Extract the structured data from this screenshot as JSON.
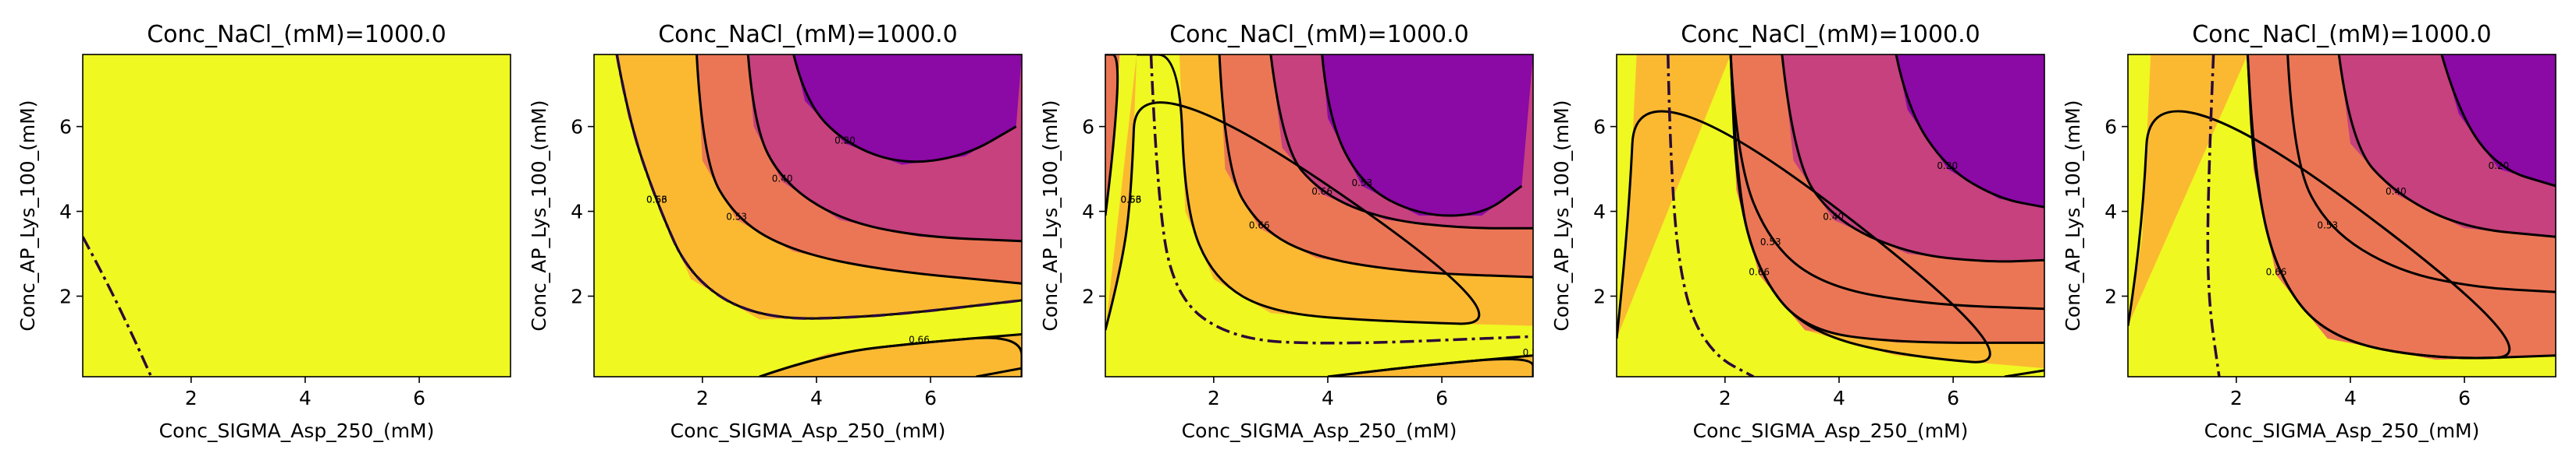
{
  "colors": {
    "level_yellow": "#eff821",
    "level_orange": "#fbb932",
    "level_salmon": "#eb7655",
    "level_magenta": "#c6417d",
    "level_purple": "#8b09a5",
    "contour_line": "#000000",
    "dashdot_line": "#2a0a3a"
  },
  "chart_data": [
    {
      "type": "contour",
      "title": "Conc_NaCl_(mM)=1000.0",
      "xlabel": "Conc_SIGMA_Asp_250_(mM)",
      "ylabel": "Conc_AP_Lys_100_(mM)",
      "xlim": [
        0.1,
        7.6
      ],
      "ylim": [
        0.1,
        7.7
      ],
      "xticks": [
        2,
        4,
        6
      ],
      "yticks": [
        2,
        4,
        6
      ],
      "contour_labels": [],
      "dashdot_line": [
        [
          0.1,
          3.4
        ],
        [
          0.5,
          2.4
        ],
        [
          1.0,
          1.0
        ],
        [
          1.3,
          0.1
        ]
      ],
      "bands": []
    },
    {
      "type": "contour",
      "title": "Conc_NaCl_(mM)=1000.0",
      "xlabel": "Conc_SIGMA_Asp_250_(mM)",
      "ylabel": "Conc_AP_Lys_100_(mM)",
      "xlim": [
        0.1,
        7.6
      ],
      "ylim": [
        0.1,
        7.7
      ],
      "xticks": [
        2,
        4,
        6
      ],
      "yticks": [
        2,
        4,
        6
      ],
      "contour_labels": [
        "0.66",
        "0.53",
        "0.40",
        "0.20",
        "0.66",
        "0.53"
      ],
      "dashdot_line": [
        [
          0.5,
          7.7
        ],
        [
          0.7,
          6.2
        ],
        [
          1.2,
          4.2
        ],
        [
          1.8,
          2.4
        ],
        [
          3.0,
          1.45
        ],
        [
          5.0,
          1.5
        ],
        [
          7.6,
          1.9
        ]
      ],
      "bands": [
        {
          "color": "level_orange",
          "boundary": [
            [
              0.5,
              7.7
            ],
            [
              0.7,
              6.2
            ],
            [
              1.2,
              4.2
            ],
            [
              1.8,
              2.4
            ],
            [
              3.0,
              1.45
            ],
            [
              5.0,
              1.5
            ],
            [
              7.6,
              1.9
            ],
            [
              7.6,
              7.7
            ]
          ]
        },
        {
          "color": "level_salmon",
          "boundary": [
            [
              1.9,
              7.7
            ],
            [
              2.0,
              5.2
            ],
            [
              2.6,
              3.8
            ],
            [
              3.6,
              3.05
            ],
            [
              5.2,
              2.6
            ],
            [
              7.6,
              2.3
            ],
            [
              7.6,
              7.7
            ]
          ]
        },
        {
          "color": "level_magenta",
          "boundary": [
            [
              2.8,
              7.7
            ],
            [
              2.9,
              6.0
            ],
            [
              3.4,
              4.7
            ],
            [
              4.4,
              3.8
            ],
            [
              5.8,
              3.4
            ],
            [
              7.6,
              3.3
            ],
            [
              7.6,
              7.7
            ]
          ]
        },
        {
          "color": "level_purple",
          "boundary": [
            [
              3.6,
              7.7
            ],
            [
              3.8,
              6.6
            ],
            [
              4.5,
              5.6
            ],
            [
              5.5,
              5.1
            ],
            [
              6.6,
              5.3
            ],
            [
              7.5,
              6.0
            ],
            [
              7.6,
              7.7
            ]
          ]
        },
        {
          "color": "level_orange",
          "boundary": [
            [
              3.0,
              0.1
            ],
            [
              4.2,
              0.65
            ],
            [
              5.8,
              0.9
            ],
            [
              7.6,
              1.1
            ],
            [
              7.6,
              0.1
            ]
          ]
        }
      ],
      "extra_lines": [
        [
          [
            3.0,
            0.1
          ],
          [
            4.2,
            0.65
          ],
          [
            5.8,
            0.9
          ],
          [
            7.6,
            1.1
          ]
        ],
        [
          [
            6.8,
            0.1
          ],
          [
            7.6,
            0.3
          ]
        ]
      ]
    },
    {
      "type": "contour",
      "title": "Conc_NaCl_(mM)=1000.0",
      "xlabel": "Conc_SIGMA_Asp_250_(mM)",
      "ylabel": "Conc_AP_Lys_100_(mM)",
      "xlim": [
        0.1,
        7.6
      ],
      "ylim": [
        0.1,
        7.7
      ],
      "xticks": [
        2,
        4,
        6
      ],
      "yticks": [
        2,
        4,
        6
      ],
      "contour_labels": [
        "0.53",
        "0.66",
        "0.66",
        "0.53",
        "0.40",
        "0.20",
        "0.66"
      ],
      "dashdot_line": [
        [
          0.9,
          7.7
        ],
        [
          1.0,
          4.5
        ],
        [
          1.3,
          2.0
        ],
        [
          2.3,
          1.0
        ],
        [
          4.0,
          0.85
        ],
        [
          7.6,
          1.05
        ]
      ],
      "bands": [
        {
          "color": "level_orange",
          "boundary": [
            [
              0.1,
              1.2
            ],
            [
              0.35,
              2.5
            ],
            [
              0.55,
              4.2
            ],
            [
              0.65,
              7.7
            ],
            [
              7.6,
              7.7
            ],
            [
              7.6,
              1.3
            ],
            [
              5.0,
              1.4
            ],
            [
              3.0,
              1.6
            ],
            [
              2.0,
              2.4
            ],
            [
              1.5,
              4.0
            ],
            [
              1.4,
              7.7
            ],
            [
              0.65,
              7.7
            ]
          ]
        },
        {
          "color": "level_salmon",
          "boundary": [
            [
              2.1,
              7.7
            ],
            [
              2.2,
              5.0
            ],
            [
              2.8,
              3.6
            ],
            [
              3.8,
              2.9
            ],
            [
              5.5,
              2.55
            ],
            [
              7.6,
              2.45
            ],
            [
              7.6,
              7.7
            ]
          ]
        },
        {
          "color": "level_magenta",
          "boundary": [
            [
              3.0,
              7.7
            ],
            [
              3.2,
              5.5
            ],
            [
              3.9,
              4.4
            ],
            [
              5.0,
              3.8
            ],
            [
              6.4,
              3.6
            ],
            [
              7.6,
              3.6
            ],
            [
              7.6,
              7.7
            ]
          ]
        },
        {
          "color": "level_purple",
          "boundary": [
            [
              3.9,
              7.7
            ],
            [
              4.0,
              6.2
            ],
            [
              4.6,
              4.6
            ],
            [
              5.6,
              3.9
            ],
            [
              6.7,
              3.9
            ],
            [
              7.4,
              4.6
            ],
            [
              7.6,
              7.7
            ]
          ]
        },
        {
          "color": "level_salmon",
          "boundary": [
            [
              0.1,
              3.9
            ],
            [
              0.25,
              5.5
            ],
            [
              0.35,
              7.7
            ],
            [
              0.1,
              7.7
            ]
          ]
        },
        {
          "color": "level_orange",
          "boundary": [
            [
              4.0,
              0.1
            ],
            [
              5.5,
              0.35
            ],
            [
              7.6,
              0.6
            ],
            [
              7.6,
              0.1
            ]
          ]
        }
      ],
      "extra_lines": [
        [
          [
            4.0,
            0.1
          ],
          [
            5.5,
            0.35
          ],
          [
            7.6,
            0.6
          ]
        ]
      ]
    },
    {
      "type": "contour",
      "title": "Conc_NaCl_(mM)=1000.0",
      "xlabel": "Conc_SIGMA_Asp_250_(mM)",
      "ylabel": "Conc_AP_Lys_100_(mM)",
      "xlim": [
        0.1,
        7.6
      ],
      "ylim": [
        0.1,
        7.7
      ],
      "xticks": [
        2,
        4,
        6
      ],
      "yticks": [
        2,
        4,
        6
      ],
      "contour_labels": [
        "0.66",
        "0.66",
        "0.53",
        "0.40",
        "0.20"
      ],
      "dashdot_line": [
        [
          1.0,
          7.7
        ],
        [
          1.05,
          4.5
        ],
        [
          1.3,
          1.8
        ],
        [
          1.8,
          0.6
        ],
        [
          2.5,
          0.1
        ]
      ],
      "bands": [
        {
          "color": "level_orange",
          "boundary": [
            [
              0.1,
              1.0
            ],
            [
              0.3,
              3.5
            ],
            [
              0.45,
              7.7
            ],
            [
              7.6,
              7.7
            ],
            [
              7.6,
              0.3
            ],
            [
              5.0,
              0.6
            ],
            [
              3.4,
              1.2
            ],
            [
              2.6,
              2.5
            ],
            [
              2.2,
              4.5
            ],
            [
              2.1,
              7.7
            ]
          ]
        },
        {
          "color": "level_salmon",
          "boundary": [
            [
              2.1,
              7.7
            ],
            [
              2.2,
              4.5
            ],
            [
              2.6,
              2.5
            ],
            [
              3.4,
              1.2
            ],
            [
              5.0,
              0.9
            ],
            [
              7.6,
              0.9
            ],
            [
              7.6,
              7.7
            ]
          ]
        },
        {
          "color": "level_salmon",
          "boundary": [
            [
              2.1,
              7.7
            ],
            [
              2.2,
              5.2
            ],
            [
              2.8,
              3.2
            ],
            [
              3.8,
              2.2
            ],
            [
              5.6,
              1.8
            ],
            [
              7.6,
              1.7
            ],
            [
              7.6,
              7.7
            ]
          ]
        },
        {
          "color": "level_magenta",
          "boundary": [
            [
              3.0,
              7.7
            ],
            [
              3.2,
              5.2
            ],
            [
              3.9,
              3.8
            ],
            [
              5.2,
              3.0
            ],
            [
              6.6,
              2.8
            ],
            [
              7.6,
              2.85
            ],
            [
              7.6,
              7.7
            ]
          ]
        },
        {
          "color": "level_purple",
          "boundary": [
            [
              5.0,
              7.7
            ],
            [
              5.2,
              6.4
            ],
            [
              5.9,
              5.0
            ],
            [
              6.8,
              4.3
            ],
            [
              7.6,
              4.1
            ],
            [
              7.6,
              7.7
            ]
          ]
        }
      ],
      "extra_lines": [
        [
          [
            6.9,
            0.1
          ],
          [
            7.6,
            0.25
          ]
        ]
      ]
    },
    {
      "type": "contour",
      "title": "Conc_NaCl_(mM)=1000.0",
      "xlabel": "Conc_SIGMA_Asp_250_(mM)",
      "ylabel": "Conc_AP_Lys_100_(mM)",
      "xlim": [
        0.1,
        7.6
      ],
      "ylim": [
        0.1,
        7.7
      ],
      "xticks": [
        2,
        4,
        6
      ],
      "yticks": [
        2,
        4,
        6
      ],
      "contour_labels": [
        "0.66",
        "0.66",
        "0.53",
        "0.40",
        "0.20"
      ],
      "dashdot_line": [
        [
          1.6,
          7.7
        ],
        [
          1.5,
          4.5
        ],
        [
          1.5,
          2.0
        ],
        [
          1.7,
          0.1
        ]
      ],
      "bands": [
        {
          "color": "level_orange",
          "boundary": [
            [
              0.1,
              1.3
            ],
            [
              0.35,
              3.4
            ],
            [
              0.5,
              7.7
            ],
            [
              7.6,
              7.7
            ],
            [
              7.6,
              0.6
            ],
            [
              5.5,
              0.5
            ],
            [
              3.6,
              1.0
            ],
            [
              2.7,
              2.5
            ],
            [
              2.3,
              5.0
            ],
            [
              2.2,
              7.7
            ]
          ]
        },
        {
          "color": "level_salmon",
          "boundary": [
            [
              2.2,
              7.7
            ],
            [
              2.3,
              5.0
            ],
            [
              2.7,
              2.5
            ],
            [
              3.6,
              1.0
            ],
            [
              5.5,
              0.5
            ],
            [
              7.6,
              0.6
            ],
            [
              7.6,
              7.7
            ]
          ]
        },
        {
          "color": "level_salmon",
          "boundary": [
            [
              2.9,
              7.7
            ],
            [
              3.0,
              5.2
            ],
            [
              3.6,
              3.6
            ],
            [
              4.8,
              2.6
            ],
            [
              6.2,
              2.2
            ],
            [
              7.6,
              2.1
            ],
            [
              7.6,
              7.7
            ]
          ]
        },
        {
          "color": "level_magenta",
          "boundary": [
            [
              3.8,
              7.7
            ],
            [
              4.0,
              5.6
            ],
            [
              4.8,
              4.4
            ],
            [
              6.0,
              3.6
            ],
            [
              7.6,
              3.4
            ],
            [
              7.6,
              7.7
            ]
          ]
        },
        {
          "color": "level_purple",
          "boundary": [
            [
              5.6,
              7.7
            ],
            [
              5.9,
              6.3
            ],
            [
              6.6,
              5.0
            ],
            [
              7.6,
              4.6
            ],
            [
              7.6,
              7.7
            ]
          ]
        }
      ],
      "extra_lines": []
    }
  ]
}
